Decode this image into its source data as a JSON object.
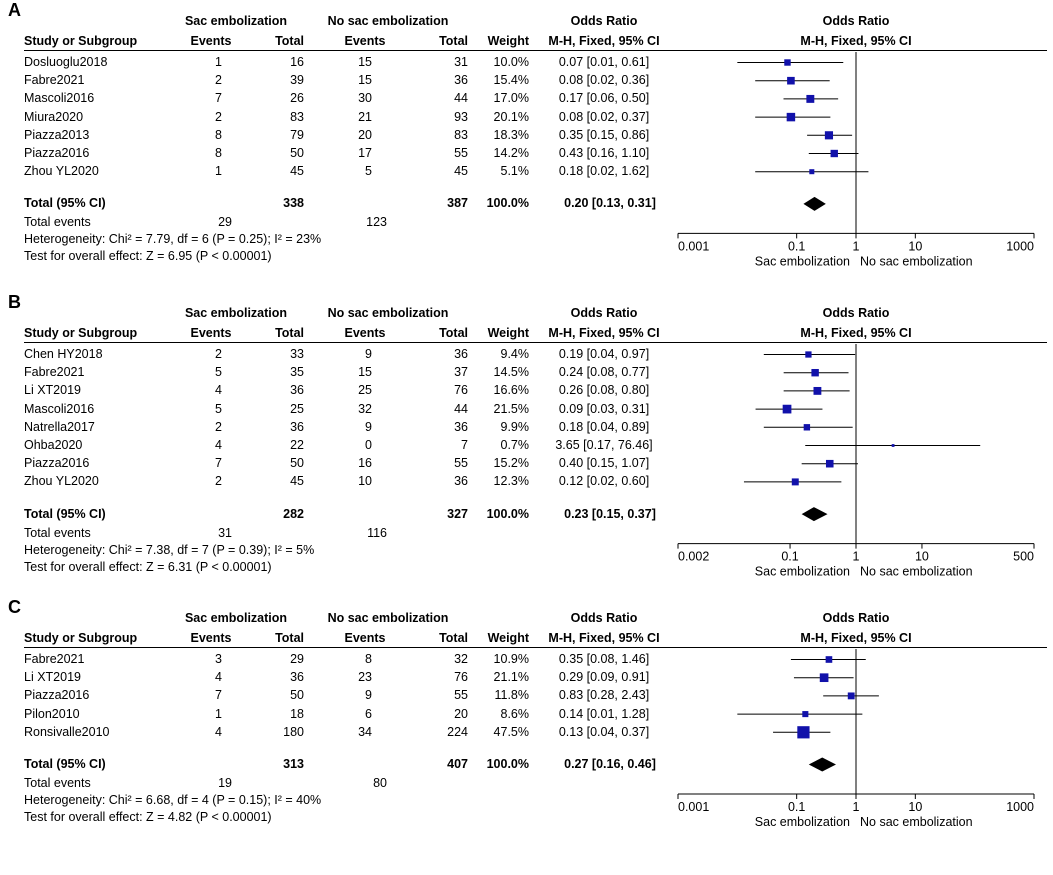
{
  "col_headers": {
    "study": "Study or Subgroup",
    "group1": "Sac embolization",
    "group2": "No sac embolization",
    "events": "Events",
    "total": "Total",
    "weight": "Weight",
    "or_title": "Odds Ratio",
    "or_method": "M-H, Fixed, 95% CI"
  },
  "labels": {
    "total_events": "Total events",
    "favours_left": "Sac embolization",
    "favours_right": "No sac embolization"
  },
  "chart_data": [
    {
      "type": "forest",
      "panel": "A",
      "axis": {
        "scale": "log",
        "range": [
          0.001,
          1000
        ],
        "ticks": [
          "0.001",
          "0.1",
          "1",
          "10",
          "1000"
        ],
        "tick_values": [
          0.001,
          0.1,
          1,
          10,
          1000
        ]
      },
      "studies": [
        {
          "name": "Dosluoglu2018",
          "e1": "1",
          "t1": "16",
          "e2": "15",
          "t2": "31",
          "weight": "10.0%",
          "or_text": "0.07 [0.01, 0.61]",
          "or": 0.07,
          "lo": 0.01,
          "hi": 0.61,
          "w": 10.0
        },
        {
          "name": "Fabre2021",
          "e1": "2",
          "t1": "39",
          "e2": "15",
          "t2": "36",
          "weight": "15.4%",
          "or_text": "0.08 [0.02, 0.36]",
          "or": 0.08,
          "lo": 0.02,
          "hi": 0.36,
          "w": 15.4
        },
        {
          "name": "Mascoli2016",
          "e1": "7",
          "t1": "26",
          "e2": "30",
          "t2": "44",
          "weight": "17.0%",
          "or_text": "0.17 [0.06, 0.50]",
          "or": 0.17,
          "lo": 0.06,
          "hi": 0.5,
          "w": 17.0
        },
        {
          "name": "Miura2020",
          "e1": "2",
          "t1": "83",
          "e2": "21",
          "t2": "93",
          "weight": "20.1%",
          "or_text": "0.08 [0.02, 0.37]",
          "or": 0.08,
          "lo": 0.02,
          "hi": 0.37,
          "w": 20.1
        },
        {
          "name": "Piazza2013",
          "e1": "8",
          "t1": "79",
          "e2": "20",
          "t2": "83",
          "weight": "18.3%",
          "or_text": "0.35 [0.15, 0.86]",
          "or": 0.35,
          "lo": 0.15,
          "hi": 0.86,
          "w": 18.3
        },
        {
          "name": "Piazza2016",
          "e1": "8",
          "t1": "50",
          "e2": "17",
          "t2": "55",
          "weight": "14.2%",
          "or_text": "0.43 [0.16, 1.10]",
          "or": 0.43,
          "lo": 0.16,
          "hi": 1.1,
          "w": 14.2
        },
        {
          "name": "Zhou YL2020",
          "e1": "1",
          "t1": "45",
          "e2": "5",
          "t2": "45",
          "weight": "5.1%",
          "or_text": "0.18 [0.02, 1.62]",
          "or": 0.18,
          "lo": 0.02,
          "hi": 1.62,
          "w": 5.1
        }
      ],
      "total": {
        "label": "Total (95% CI)",
        "t1": "338",
        "t2": "387",
        "weight": "100.0%",
        "or_text": "0.20 [0.13, 0.31]",
        "or": 0.2,
        "lo": 0.13,
        "hi": 0.31
      },
      "total_events": {
        "e1": "29",
        "e2": "123"
      },
      "heterogeneity": "Heterogeneity: Chi² = 7.79, df = 6 (P = 0.25); I² = 23%",
      "overall_effect": "Test for overall effect: Z = 6.95 (P < 0.00001)"
    },
    {
      "type": "forest",
      "panel": "B",
      "axis": {
        "scale": "log",
        "range": [
          0.002,
          500
        ],
        "ticks": [
          "0.002",
          "0.1",
          "1",
          "10",
          "500"
        ],
        "tick_values": [
          0.002,
          0.1,
          1,
          10,
          500
        ]
      },
      "studies": [
        {
          "name": "Chen HY2018",
          "e1": "2",
          "t1": "33",
          "e2": "9",
          "t2": "36",
          "weight": "9.4%",
          "or_text": "0.19 [0.04, 0.97]",
          "or": 0.19,
          "lo": 0.04,
          "hi": 0.97,
          "w": 9.4
        },
        {
          "name": "Fabre2021",
          "e1": "5",
          "t1": "35",
          "e2": "15",
          "t2": "37",
          "weight": "14.5%",
          "or_text": "0.24 [0.08, 0.77]",
          "or": 0.24,
          "lo": 0.08,
          "hi": 0.77,
          "w": 14.5
        },
        {
          "name": "Li XT2019",
          "e1": "4",
          "t1": "36",
          "e2": "25",
          "t2": "76",
          "weight": "16.6%",
          "or_text": "0.26 [0.08, 0.80]",
          "or": 0.26,
          "lo": 0.08,
          "hi": 0.8,
          "w": 16.6
        },
        {
          "name": "Mascoli2016",
          "e1": "5",
          "t1": "25",
          "e2": "32",
          "t2": "44",
          "weight": "21.5%",
          "or_text": "0.09 [0.03, 0.31]",
          "or": 0.09,
          "lo": 0.03,
          "hi": 0.31,
          "w": 21.5
        },
        {
          "name": "Natrella2017",
          "e1": "2",
          "t1": "36",
          "e2": "9",
          "t2": "36",
          "weight": "9.9%",
          "or_text": "0.18 [0.04, 0.89]",
          "or": 0.18,
          "lo": 0.04,
          "hi": 0.89,
          "w": 9.9
        },
        {
          "name": "Ohba2020",
          "e1": "4",
          "t1": "22",
          "e2": "0",
          "t2": "7",
          "weight": "0.7%",
          "or_text": "3.65 [0.17, 76.46]",
          "or": 3.65,
          "lo": 0.17,
          "hi": 76.46,
          "w": 0.7
        },
        {
          "name": "Piazza2016",
          "e1": "7",
          "t1": "50",
          "e2": "16",
          "t2": "55",
          "weight": "15.2%",
          "or_text": "0.40 [0.15, 1.07]",
          "or": 0.4,
          "lo": 0.15,
          "hi": 1.07,
          "w": 15.2
        },
        {
          "name": "Zhou YL2020",
          "e1": "2",
          "t1": "45",
          "e2": "10",
          "t2": "36",
          "weight": "12.3%",
          "or_text": "0.12 [0.02, 0.60]",
          "or": 0.12,
          "lo": 0.02,
          "hi": 0.6,
          "w": 12.3
        }
      ],
      "total": {
        "label": "Total (95% CI)",
        "t1": "282",
        "t2": "327",
        "weight": "100.0%",
        "or_text": "0.23 [0.15, 0.37]",
        "or": 0.23,
        "lo": 0.15,
        "hi": 0.37
      },
      "total_events": {
        "e1": "31",
        "e2": "116"
      },
      "heterogeneity": "Heterogeneity: Chi² = 7.38, df = 7 (P = 0.39); I² = 5%",
      "overall_effect": "Test for overall effect: Z = 6.31 (P < 0.00001)"
    },
    {
      "type": "forest",
      "panel": "C",
      "axis": {
        "scale": "log",
        "range": [
          0.001,
          1000
        ],
        "ticks": [
          "0.001",
          "0.1",
          "1",
          "10",
          "1000"
        ],
        "tick_values": [
          0.001,
          0.1,
          1,
          10,
          1000
        ]
      },
      "studies": [
        {
          "name": "Fabre2021",
          "e1": "3",
          "t1": "29",
          "e2": "8",
          "t2": "32",
          "weight": "10.9%",
          "or_text": "0.35 [0.08, 1.46]",
          "or": 0.35,
          "lo": 0.08,
          "hi": 1.46,
          "w": 10.9
        },
        {
          "name": "Li XT2019",
          "e1": "4",
          "t1": "36",
          "e2": "23",
          "t2": "76",
          "weight": "21.1%",
          "or_text": "0.29 [0.09, 0.91]",
          "or": 0.29,
          "lo": 0.09,
          "hi": 0.91,
          "w": 21.1
        },
        {
          "name": "Piazza2016",
          "e1": "7",
          "t1": "50",
          "e2": "9",
          "t2": "55",
          "weight": "11.8%",
          "or_text": "0.83 [0.28, 2.43]",
          "or": 0.83,
          "lo": 0.28,
          "hi": 2.43,
          "w": 11.8
        },
        {
          "name": "Pilon2010",
          "e1": "1",
          "t1": "18",
          "e2": "6",
          "t2": "20",
          "weight": "8.6%",
          "or_text": "0.14 [0.01, 1.28]",
          "or": 0.14,
          "lo": 0.01,
          "hi": 1.28,
          "w": 8.6
        },
        {
          "name": "Ronsivalle2010",
          "e1": "4",
          "t1": "180",
          "e2": "34",
          "t2": "224",
          "weight": "47.5%",
          "or_text": "0.13 [0.04, 0.37]",
          "or": 0.13,
          "lo": 0.04,
          "hi": 0.37,
          "w": 47.5
        }
      ],
      "total": {
        "label": "Total (95% CI)",
        "t1": "313",
        "t2": "407",
        "weight": "100.0%",
        "or_text": "0.27 [0.16, 0.46]",
        "or": 0.27,
        "lo": 0.16,
        "hi": 0.46
      },
      "total_events": {
        "e1": "19",
        "e2": "80"
      },
      "heterogeneity": "Heterogeneity: Chi² = 6.68, df = 4 (P = 0.15); I² = 40%",
      "overall_effect": "Test for overall effect: Z = 4.82 (P < 0.00001)"
    }
  ]
}
